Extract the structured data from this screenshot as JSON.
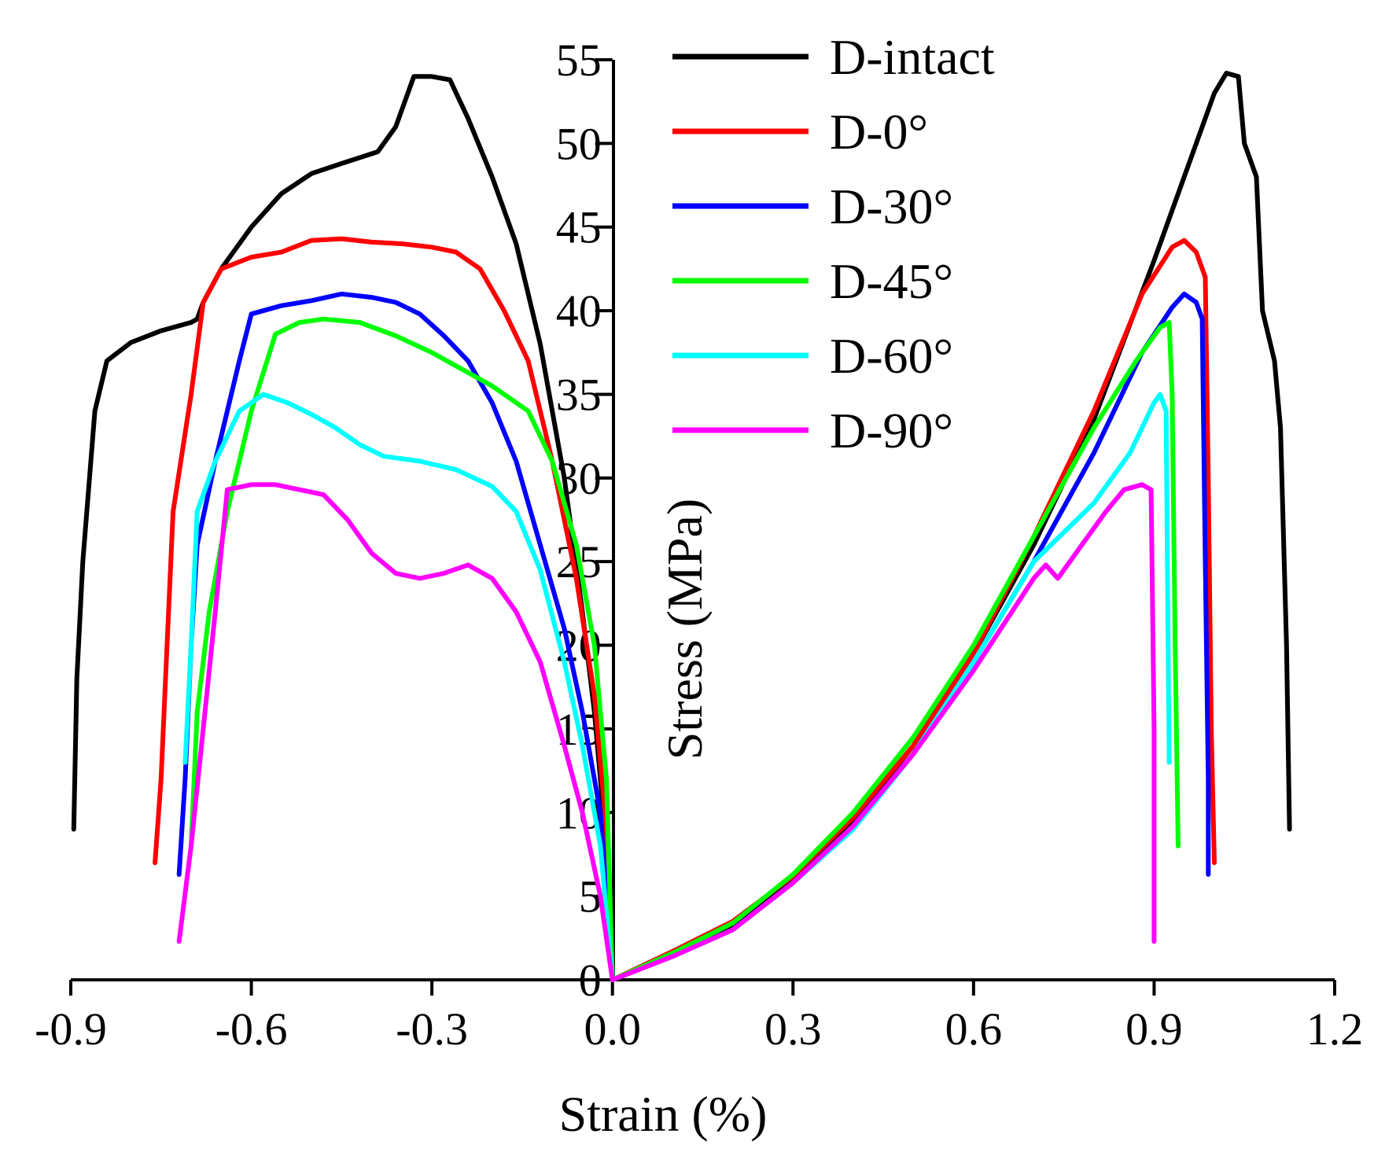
{
  "chart_data": {
    "type": "line",
    "title": "",
    "xlabel": "Strain (%)",
    "ylabel": "Stress (MPa)",
    "xlim": [
      -0.9,
      1.2
    ],
    "ylim": [
      0,
      55
    ],
    "x_ticks": [
      "-0.9",
      "-0.6",
      "-0.3",
      "0.0",
      "0.3",
      "0.6",
      "0.9",
      "1.2"
    ],
    "y_ticks": [
      "0",
      "5",
      "10",
      "15",
      "20",
      "25",
      "30",
      "35",
      "40",
      "45",
      "50",
      "55"
    ],
    "x_tick_values": [
      -0.9,
      -0.6,
      -0.3,
      0.0,
      0.3,
      0.6,
      0.9,
      1.2
    ],
    "y_tick_values": [
      0,
      5,
      10,
      15,
      20,
      25,
      30,
      35,
      40,
      45,
      50,
      55
    ],
    "grid": false,
    "legend_position": "top-center",
    "series": [
      {
        "name": "D-intact",
        "color": "#000000",
        "lateral": [
          [
            0.0,
            0
          ],
          [
            -0.015,
            10
          ],
          [
            -0.03,
            16
          ],
          [
            -0.05,
            22
          ],
          [
            -0.08,
            30
          ],
          [
            -0.12,
            38
          ],
          [
            -0.16,
            44
          ],
          [
            -0.2,
            48
          ],
          [
            -0.24,
            51.5
          ],
          [
            -0.27,
            53.8
          ],
          [
            -0.3,
            54
          ],
          [
            -0.33,
            54
          ],
          [
            -0.36,
            51
          ],
          [
            -0.39,
            49.5
          ],
          [
            -0.45,
            48.8
          ],
          [
            -0.5,
            48.2
          ],
          [
            -0.55,
            47
          ],
          [
            -0.6,
            45
          ],
          [
            -0.65,
            42.5
          ],
          [
            -0.68,
            40.5
          ],
          [
            -0.69,
            39.5
          ],
          [
            -0.7,
            39.3
          ],
          [
            -0.75,
            38.8
          ],
          [
            -0.8,
            38.1
          ],
          [
            -0.84,
            37
          ],
          [
            -0.86,
            34
          ],
          [
            -0.88,
            25
          ],
          [
            -0.89,
            18
          ],
          [
            -0.895,
            9
          ]
        ],
        "axial": [
          [
            0.0,
            0
          ],
          [
            0.1,
            1.5
          ],
          [
            0.2,
            3.2
          ],
          [
            0.3,
            6
          ],
          [
            0.4,
            9.5
          ],
          [
            0.5,
            14
          ],
          [
            0.6,
            19.5
          ],
          [
            0.7,
            26
          ],
          [
            0.8,
            33.5
          ],
          [
            0.9,
            43
          ],
          [
            0.95,
            48
          ],
          [
            1.0,
            53
          ],
          [
            1.02,
            54.2
          ],
          [
            1.04,
            54
          ],
          [
            1.05,
            50
          ],
          [
            1.07,
            48
          ],
          [
            1.08,
            40
          ],
          [
            1.1,
            37
          ],
          [
            1.11,
            33
          ],
          [
            1.12,
            20
          ],
          [
            1.125,
            9
          ]
        ]
      },
      {
        "name": "D-0°",
        "color": "#ff0000",
        "lateral": [
          [
            0.0,
            0
          ],
          [
            -0.01,
            9
          ],
          [
            -0.03,
            17
          ],
          [
            -0.06,
            24
          ],
          [
            -0.1,
            31
          ],
          [
            -0.14,
            37
          ],
          [
            -0.18,
            40
          ],
          [
            -0.22,
            42.5
          ],
          [
            -0.26,
            43.5
          ],
          [
            -0.3,
            43.8
          ],
          [
            -0.35,
            44
          ],
          [
            -0.4,
            44.1
          ],
          [
            -0.45,
            44.3
          ],
          [
            -0.5,
            44.2
          ],
          [
            -0.55,
            43.5
          ],
          [
            -0.6,
            43.2
          ],
          [
            -0.65,
            42.5
          ],
          [
            -0.68,
            40.5
          ],
          [
            -0.7,
            35
          ],
          [
            -0.73,
            28
          ],
          [
            -0.74,
            20
          ],
          [
            -0.75,
            12
          ],
          [
            -0.76,
            7
          ]
        ],
        "axial": [
          [
            0.0,
            0
          ],
          [
            0.1,
            1.7
          ],
          [
            0.2,
            3.5
          ],
          [
            0.3,
            6.2
          ],
          [
            0.4,
            9.7
          ],
          [
            0.5,
            14
          ],
          [
            0.6,
            19.5
          ],
          [
            0.7,
            26.5
          ],
          [
            0.8,
            34
          ],
          [
            0.88,
            41
          ],
          [
            0.93,
            43.8
          ],
          [
            0.95,
            44.2
          ],
          [
            0.97,
            43.5
          ],
          [
            0.985,
            42
          ],
          [
            0.99,
            30
          ],
          [
            0.995,
            15
          ],
          [
            1.0,
            7
          ]
        ]
      },
      {
        "name": "D-30°",
        "color": "#0000ff",
        "lateral": [
          [
            0.0,
            0
          ],
          [
            -0.02,
            10
          ],
          [
            -0.05,
            16
          ],
          [
            -0.08,
            21
          ],
          [
            -0.12,
            26
          ],
          [
            -0.16,
            31
          ],
          [
            -0.2,
            34.5
          ],
          [
            -0.24,
            37
          ],
          [
            -0.28,
            38.5
          ],
          [
            -0.32,
            39.8
          ],
          [
            -0.36,
            40.5
          ],
          [
            -0.4,
            40.8
          ],
          [
            -0.45,
            41
          ],
          [
            -0.5,
            40.6
          ],
          [
            -0.55,
            40.3
          ],
          [
            -0.6,
            39.8
          ],
          [
            -0.62,
            37
          ],
          [
            -0.66,
            31
          ],
          [
            -0.69,
            26
          ],
          [
            -0.7,
            20
          ],
          [
            -0.71,
            12
          ],
          [
            -0.72,
            6.3
          ]
        ],
        "axial": [
          [
            0.0,
            0
          ],
          [
            0.1,
            1.4
          ],
          [
            0.2,
            3
          ],
          [
            0.3,
            5.8
          ],
          [
            0.4,
            9.2
          ],
          [
            0.5,
            13.5
          ],
          [
            0.6,
            19
          ],
          [
            0.7,
            25
          ],
          [
            0.8,
            31.5
          ],
          [
            0.88,
            37.5
          ],
          [
            0.93,
            40.2
          ],
          [
            0.95,
            41
          ],
          [
            0.97,
            40.5
          ],
          [
            0.98,
            39.5
          ],
          [
            0.985,
            25
          ],
          [
            0.99,
            12
          ],
          [
            0.99,
            6.3
          ]
        ]
      },
      {
        "name": "D-45°",
        "color": "#00ff00",
        "lateral": [
          [
            0.0,
            0
          ],
          [
            -0.01,
            12
          ],
          [
            -0.03,
            20
          ],
          [
            -0.06,
            26
          ],
          [
            -0.1,
            31
          ],
          [
            -0.14,
            34
          ],
          [
            -0.2,
            35.5
          ],
          [
            -0.25,
            36.5
          ],
          [
            -0.3,
            37.5
          ],
          [
            -0.36,
            38.5
          ],
          [
            -0.42,
            39.3
          ],
          [
            -0.48,
            39.5
          ],
          [
            -0.52,
            39.3
          ],
          [
            -0.56,
            38.6
          ],
          [
            -0.6,
            34
          ],
          [
            -0.64,
            28
          ],
          [
            -0.67,
            22
          ],
          [
            -0.69,
            16
          ],
          [
            -0.7,
            8
          ]
        ],
        "axial": [
          [
            0.0,
            0
          ],
          [
            0.1,
            1.6
          ],
          [
            0.2,
            3.4
          ],
          [
            0.3,
            6.3
          ],
          [
            0.4,
            10
          ],
          [
            0.5,
            14.5
          ],
          [
            0.6,
            20
          ],
          [
            0.7,
            26.5
          ],
          [
            0.8,
            33
          ],
          [
            0.87,
            37
          ],
          [
            0.91,
            39
          ],
          [
            0.925,
            39.3
          ],
          [
            0.93,
            35
          ],
          [
            0.935,
            20
          ],
          [
            0.94,
            8
          ]
        ]
      },
      {
        "name": "D-60°",
        "color": "#00ffff",
        "lateral": [
          [
            0.0,
            0
          ],
          [
            -0.02,
            8
          ],
          [
            -0.05,
            14
          ],
          [
            -0.08,
            19
          ],
          [
            -0.12,
            24.5
          ],
          [
            -0.16,
            28
          ],
          [
            -0.2,
            29.5
          ],
          [
            -0.26,
            30.5
          ],
          [
            -0.32,
            31
          ],
          [
            -0.38,
            31.3
          ],
          [
            -0.42,
            32
          ],
          [
            -0.46,
            33
          ],
          [
            -0.5,
            33.8
          ],
          [
            -0.54,
            34.5
          ],
          [
            -0.58,
            35
          ],
          [
            -0.62,
            34
          ],
          [
            -0.66,
            31
          ],
          [
            -0.69,
            28
          ],
          [
            -0.7,
            20
          ],
          [
            -0.71,
            13
          ]
        ],
        "axial": [
          [
            0.0,
            0
          ],
          [
            0.1,
            1.4
          ],
          [
            0.2,
            3
          ],
          [
            0.3,
            5.8
          ],
          [
            0.4,
            9
          ],
          [
            0.5,
            13.5
          ],
          [
            0.6,
            19
          ],
          [
            0.7,
            25
          ],
          [
            0.8,
            28.5
          ],
          [
            0.86,
            31.5
          ],
          [
            0.9,
            34.5
          ],
          [
            0.91,
            35
          ],
          [
            0.92,
            34
          ],
          [
            0.922,
            25
          ],
          [
            0.925,
            13
          ]
        ]
      },
      {
        "name": "D-90°",
        "color": "#ff00ff",
        "lateral": [
          [
            0.0,
            0
          ],
          [
            -0.02,
            5
          ],
          [
            -0.05,
            10
          ],
          [
            -0.08,
            14
          ],
          [
            -0.12,
            19
          ],
          [
            -0.16,
            22
          ],
          [
            -0.2,
            24
          ],
          [
            -0.24,
            24.8
          ],
          [
            -0.28,
            24.3
          ],
          [
            -0.32,
            24
          ],
          [
            -0.36,
            24.3
          ],
          [
            -0.4,
            25.5
          ],
          [
            -0.44,
            27.5
          ],
          [
            -0.48,
            29
          ],
          [
            -0.52,
            29.3
          ],
          [
            -0.56,
            29.6
          ],
          [
            -0.6,
            29.6
          ],
          [
            -0.64,
            29.3
          ],
          [
            -0.66,
            22
          ],
          [
            -0.68,
            15
          ],
          [
            -0.7,
            8
          ],
          [
            -0.72,
            2.3
          ]
        ],
        "axial": [
          [
            0.0,
            0
          ],
          [
            0.1,
            1.4
          ],
          [
            0.2,
            3
          ],
          [
            0.3,
            5.8
          ],
          [
            0.4,
            9.2
          ],
          [
            0.5,
            13.5
          ],
          [
            0.6,
            18.5
          ],
          [
            0.7,
            24
          ],
          [
            0.72,
            24.8
          ],
          [
            0.74,
            24
          ],
          [
            0.78,
            26
          ],
          [
            0.82,
            28
          ],
          [
            0.85,
            29.3
          ],
          [
            0.88,
            29.6
          ],
          [
            0.895,
            29.3
          ],
          [
            0.9,
            15
          ],
          [
            0.9,
            2.3
          ]
        ]
      }
    ]
  }
}
